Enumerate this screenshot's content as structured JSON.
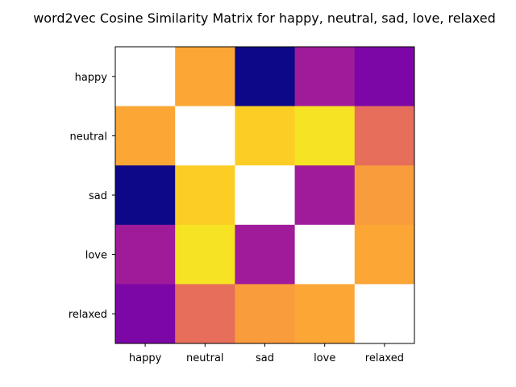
{
  "chart_data": {
    "type": "heatmap",
    "title": "word2vec Cosine Similarity Matrix for happy, neutral, sad, love, relaxed",
    "x_categories": [
      "happy",
      "neutral",
      "sad",
      "love",
      "relaxed"
    ],
    "y_categories": [
      "happy",
      "neutral",
      "sad",
      "love",
      "relaxed"
    ],
    "colormap": "plasma",
    "diagonal_blank": true,
    "matrix": [
      [
        null,
        0.8,
        0.0,
        0.35,
        0.25
      ],
      [
        0.8,
        null,
        0.9,
        0.95,
        0.63
      ],
      [
        0.0,
        0.9,
        null,
        0.35,
        0.77
      ],
      [
        0.35,
        0.95,
        0.35,
        null,
        0.8
      ],
      [
        0.25,
        0.63,
        0.77,
        0.8,
        null
      ]
    ],
    "value_range": [
      0,
      1
    ],
    "colors": {
      "blank_cell": "#ffffff",
      "frame": "#000000"
    }
  }
}
